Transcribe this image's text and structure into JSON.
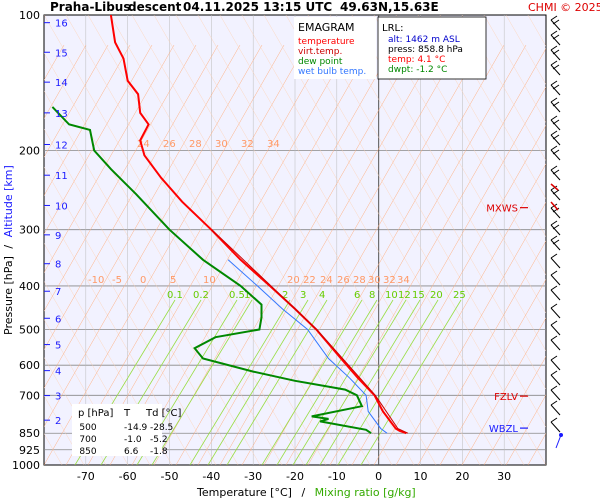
{
  "header": {
    "station": "Praha-Libus",
    "mode": "descent",
    "datetime": "04.11.2025 13:15 UTC",
    "coords": "49.63N,15.63E",
    "copyright": "CHMI © 2025"
  },
  "legend": {
    "title": "EMAGRAM",
    "items": [
      {
        "label": "temperature",
        "color": "#ff0000"
      },
      {
        "label": "virt.temp.",
        "color": "#cc0000"
      },
      {
        "label": "dew point",
        "color": "#008800"
      },
      {
        "label": "wet bulb temp.",
        "color": "#3377ff"
      }
    ]
  },
  "lrl": {
    "title": "LRL:",
    "alt": "alt: 1462 m ASL",
    "press": "press: 858.8 hPa",
    "temp": "temp: 4.1 °C",
    "dwpt": "dwpt: -1.2 °C"
  },
  "table": {
    "headers": [
      "p [hPa]",
      "T",
      "Td [°C]"
    ],
    "rows": [
      [
        "500",
        "-14.9",
        "-28.5"
      ],
      [
        "700",
        "-1.0",
        "-5.2"
      ],
      [
        "850",
        "6.6",
        "-1.8"
      ]
    ]
  },
  "markers": [
    {
      "label": "MXWS",
      "p": 268
    },
    {
      "label": "FZLV",
      "p": 703
    },
    {
      "label": "WBZL",
      "p": 828
    }
  ],
  "axes": {
    "ylabel": "Pressure [hPa]",
    "ylabel_sep": "/",
    "ylabel2": "Altitude [km]",
    "xlabel": "Temperature [°C]",
    "xlabel_sep": "/",
    "xlabel2": "Mixing ratio [g/kg]"
  },
  "chart_data": {
    "type": "line",
    "xlim": [
      -80,
      40
    ],
    "ylim": [
      1000,
      100
    ],
    "yscale": "log",
    "x_ticks": [
      -70,
      -60,
      -50,
      -40,
      -30,
      -20,
      -10,
      0,
      10,
      20,
      30
    ],
    "y_ticks": [
      100,
      200,
      300,
      400,
      500,
      600,
      700,
      850,
      925,
      1000
    ],
    "altitude_ticks": [
      {
        "km": "16",
        "p": 104
      },
      {
        "km": "15",
        "p": 121
      },
      {
        "km": "14",
        "p": 141
      },
      {
        "km": "13",
        "p": 165
      },
      {
        "km": "12",
        "p": 194
      },
      {
        "km": "11",
        "p": 227
      },
      {
        "km": "10",
        "p": 265
      },
      {
        "km": "9",
        "p": 308
      },
      {
        "km": "8",
        "p": 357
      },
      {
        "km": "7",
        "p": 411
      },
      {
        "km": "6",
        "p": 472
      },
      {
        "km": "5",
        "p": 540
      },
      {
        "km": "4",
        "p": 617
      },
      {
        "km": "3",
        "p": 701
      },
      {
        "km": "2",
        "p": 795
      }
    ],
    "mixing_ratio_labels": [
      "0.1",
      "0.2",
      "0.5",
      "1",
      "2",
      "3",
      "4",
      "6",
      "8",
      "10",
      "12",
      "15",
      "20",
      "25"
    ],
    "dry_adiabat_labels": [
      "-10",
      "-5",
      "0",
      "5",
      "10",
      "20",
      "22",
      "24",
      "26",
      "28",
      "30",
      "32",
      "34"
    ],
    "series": [
      {
        "name": "temperature",
        "color": "#ff0000",
        "points": [
          [
            6.6,
            850
          ],
          [
            5.0,
            840
          ],
          [
            4.1,
            830
          ],
          [
            1.0,
            760
          ],
          [
            -1.0,
            700
          ],
          [
            -5.0,
            640
          ],
          [
            -9.0,
            580
          ],
          [
            -14.9,
            500
          ],
          [
            -20.0,
            450
          ],
          [
            -26.0,
            400
          ],
          [
            -33.0,
            350
          ],
          [
            -40.0,
            300
          ],
          [
            -47.0,
            260
          ],
          [
            -52.0,
            230
          ],
          [
            -56.0,
            205
          ],
          [
            -57.0,
            190
          ],
          [
            -55.0,
            175
          ],
          [
            -57.0,
            165
          ],
          [
            -57.5,
            150
          ],
          [
            -60.0,
            140
          ],
          [
            -61.0,
            125
          ],
          [
            -63.0,
            115
          ],
          [
            -64.0,
            100
          ]
        ]
      },
      {
        "name": "virt.temp.",
        "color": "#cc0000",
        "points": [
          [
            7.0,
            850
          ],
          [
            4.6,
            830
          ],
          [
            -0.8,
            700
          ],
          [
            -14.8,
            500
          ],
          [
            -39.9,
            300
          ]
        ]
      },
      {
        "name": "dew point",
        "color": "#008800",
        "points": [
          [
            -1.8,
            850
          ],
          [
            -3.0,
            835
          ],
          [
            -14.0,
            800
          ],
          [
            -12.0,
            790
          ],
          [
            -16.0,
            780
          ],
          [
            -4.0,
            740
          ],
          [
            -5.2,
            700
          ],
          [
            -8.0,
            680
          ],
          [
            -20.0,
            650
          ],
          [
            -30.0,
            620
          ],
          [
            -42.0,
            580
          ],
          [
            -44.0,
            550
          ],
          [
            -39.0,
            520
          ],
          [
            -28.5,
            500
          ],
          [
            -28.0,
            470
          ],
          [
            -28.0,
            440
          ],
          [
            -33.0,
            400
          ],
          [
            -42.0,
            350
          ],
          [
            -50.0,
            300
          ],
          [
            -58.0,
            250
          ],
          [
            -64.0,
            220
          ],
          [
            -68.0,
            200
          ],
          [
            -69.0,
            180
          ],
          [
            -74.0,
            175
          ],
          [
            -78.0,
            160
          ]
        ]
      },
      {
        "name": "wet bulb temp.",
        "color": "#3377ff",
        "points": [
          [
            2.0,
            850
          ],
          [
            0.5,
            830
          ],
          [
            -2.5,
            760
          ],
          [
            -3.0,
            700
          ],
          [
            -7.0,
            640
          ],
          [
            -12.0,
            580
          ],
          [
            -17.0,
            500
          ],
          [
            -23.0,
            450
          ],
          [
            -29.0,
            400
          ],
          [
            -36.0,
            350
          ]
        ]
      }
    ]
  }
}
